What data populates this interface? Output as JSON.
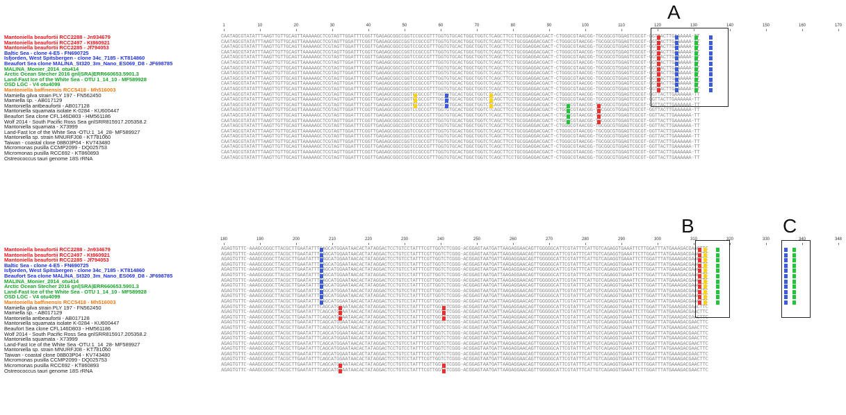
{
  "colors": {
    "red": "#e8161c",
    "blue": "#2233dd",
    "green": "#1aa52a",
    "orange": "#ee7a16",
    "black": "#222222",
    "mark_red": "#e8312f",
    "mark_blue": "#3c5bd8",
    "mark_green": "#23c43a",
    "mark_yellow": "#ffd21a"
  },
  "species": [
    {
      "label": "Mantoniella  beaufortii RCC2288 - Jn934679",
      "color": "red",
      "bold": true
    },
    {
      "label": "Mantoniella  beaufortii RCC2497 - Kt860921",
      "color": "red",
      "bold": true
    },
    {
      "label": "Mantoniella  beaufortii RCC2285 - Jf794053",
      "color": "red",
      "bold": true
    },
    {
      "label": "Baltic Sea - clone 4-E5 - FN690725",
      "color": "blue",
      "bold": true
    },
    {
      "label": "Isfjorden, West Spitsbergen - clone 34c_7185 - KT814860",
      "color": "blue",
      "bold": true
    },
    {
      "label": "Beaufort Sea clone MALINA_St320_3m_Nano_ES069_D8 - JF698785",
      "color": "blue",
      "bold": true
    },
    {
      "label": "MALINA_Monier_2014_otu414",
      "color": "green",
      "bold": true
    },
    {
      "label": "Arctic Ocean Stecher 2016 gnl|SRA|ERR660653.5901.3",
      "color": "green",
      "bold": true
    },
    {
      "label": "Land-Fast Ice of the White Sea - OTU 1_14_10 - MF589928",
      "color": "green",
      "bold": true
    },
    {
      "label": "OSD LGC -  V4 otu4099",
      "color": "green",
      "bold": true
    },
    {
      "label": "Mantoniella baffinensis RCC5418 - Mh516003",
      "color": "orange",
      "bold": true
    },
    {
      "label": "Mamiella gilva strain PLY 197 - FN562450",
      "color": "black",
      "bold": false
    },
    {
      "label": "Mamiella sp. - AB017129",
      "color": "black",
      "bold": false
    },
    {
      "label": "Mantoniella antbeaufortii - AB017128",
      "color": "black",
      "bold": false
    },
    {
      "label": "Mantoniella squamata  isolate K-0284 - KU600447",
      "color": "black",
      "bold": false
    },
    {
      "label": "Beaufort Sea  clone CFL146D803 - HM561186",
      "color": "black",
      "bold": false
    },
    {
      "label": "Wolf 2014 - South Pacific Ross Sea gnlSRR815917.205358.2",
      "color": "black",
      "bold": false
    },
    {
      "label": "Mantoniella squamata - X73999",
      "color": "black",
      "bold": false
    },
    {
      "label": "Land-Fast Ice of the White Sea -OTU:1_14_28- MF589927",
      "color": "black",
      "bold": false
    },
    {
      "label": "Mantoniella sp. strain MNURFJ08 - KT781060",
      "color": "black",
      "bold": false
    },
    {
      "label": "Taiwan - coastal  clone 08B03P04 - KV743480",
      "color": "black",
      "bold": false
    },
    {
      "label": "Micromonas pusilla CCMP2099 - DQ025753",
      "color": "black",
      "bold": false
    },
    {
      "label": "Micromonas pusilla  RCC692 - KT860893",
      "color": "black",
      "bold": false
    },
    {
      "label": "Ostreococcus tauri genome 18S rRNA",
      "color": "black",
      "bold": false
    }
  ],
  "top": {
    "ruler": [
      "1",
      "10",
      "20",
      "30",
      "40",
      "50",
      "60",
      "70",
      "80",
      "90",
      "100",
      "110",
      "120",
      "130",
      "140",
      "150",
      "160",
      "170"
    ],
    "box_label": "A",
    "base_sequence": "CAATAGCGTATATTTAAGTTGTTGCAGTTAAAAAGCTCGTAGTTGGATTTCGGTTGAGAGCGGCCGGTCCGCCGTTTGGTGTGCACTGGCTGGTCTCAGCTTCCTGCGGAGGACGACT-CTGGGCGTAACGG-TGCGGCGTGGAGTCGCGT-GGTTACTTGAAAAAA-TT"
  },
  "bottom": {
    "ruler": [
      "180",
      "190",
      "200",
      "210",
      "220",
      "230",
      "240",
      "250",
      "260",
      "270",
      "280",
      "290",
      "300",
      "310",
      "320",
      "330",
      "340",
      "348"
    ],
    "box_label_1": "B",
    "box_label_2": "C",
    "base_sequence": "AGAGTGTTC-AAAGCGGGCTTACGCTTGAATATTTCAGCATGGAATAACACTATAGGACTCCTGTCCTATTTCGTTGGTCTCGGG-ACGGAGTAATGATTAAGAGGAACAGTTGGGGGCATTCGTATTTCATTGTCAGAGGTGAAATTCTTGGATTTATGAAAGACGAACTTC"
  }
}
